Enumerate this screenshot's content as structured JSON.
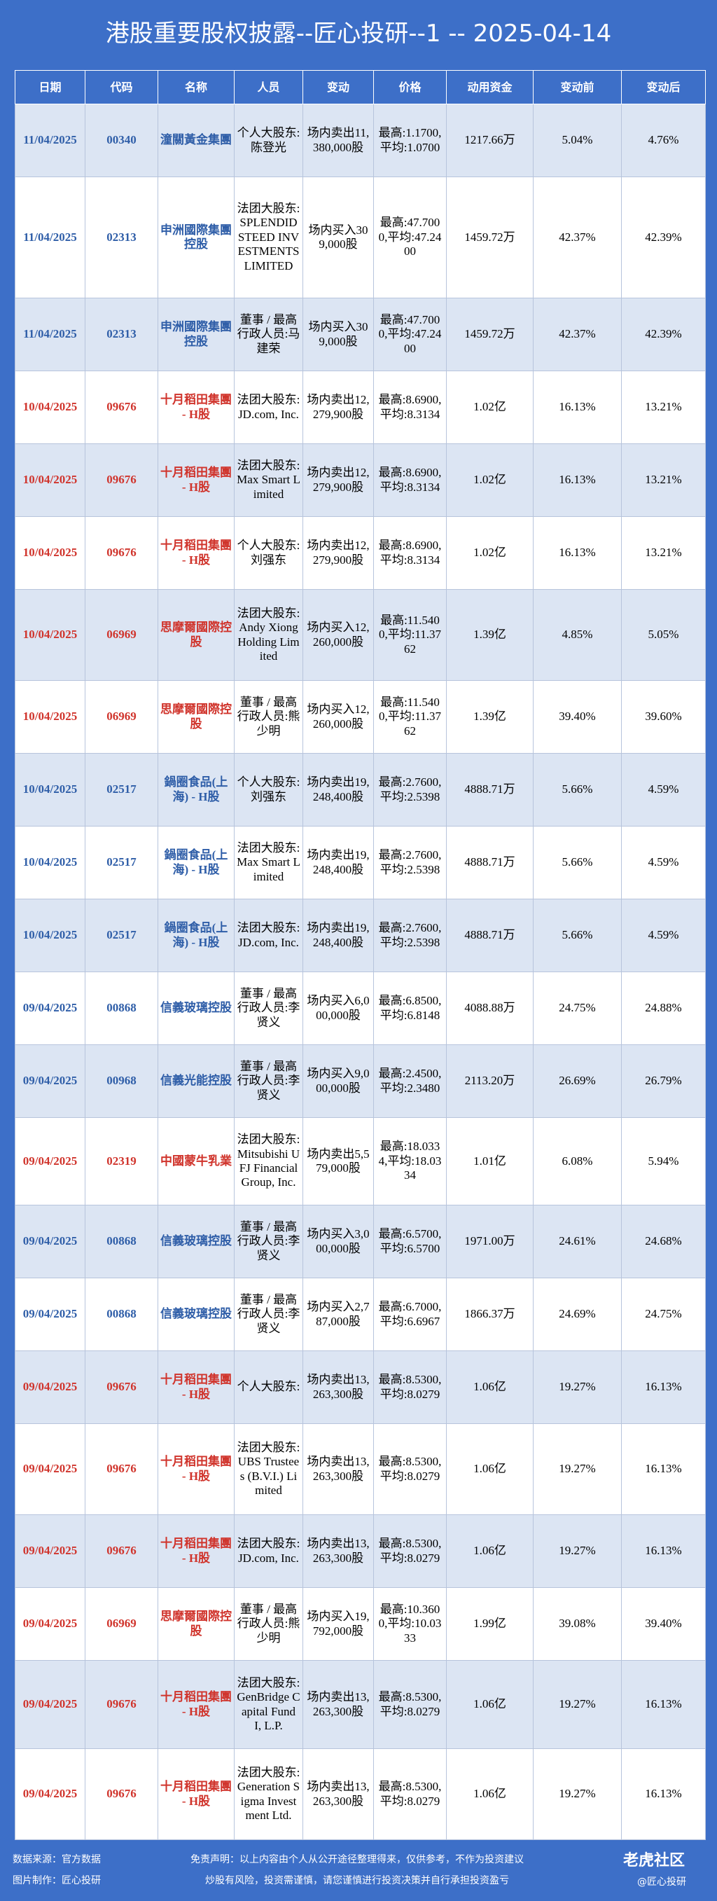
{
  "title": "港股重要股权披露--匠心投研--1 -- 2025-04-14",
  "table": {
    "header": [
      "日期",
      "代码",
      "名称",
      "人员",
      "变动",
      "价格",
      "动用资金",
      "变动前",
      "变动后"
    ],
    "rows": [
      {
        "color": "#2f5ea8",
        "cells": [
          "11/04/2025",
          "00340",
          "潼關黃金集團",
          "个人大股东:陈登光",
          "场内卖出11,380,000股",
          "最高:1.1700,平均:1.0700",
          "1217.66万",
          "5.04%",
          "4.76%"
        ]
      },
      {
        "color": "#2f5ea8",
        "cells": [
          "11/04/2025",
          "02313",
          "申洲國際集團控股",
          "法团大股东:SPLENDID STEED INVESTMENTS LIMITED",
          "场内买入309,000股",
          "最高:47.7000,平均:47.2400",
          "1459.72万",
          "42.37%",
          "42.39%"
        ]
      },
      {
        "color": "#2f5ea8",
        "cells": [
          "11/04/2025",
          "02313",
          "申洲國際集團控股",
          "董事 / 最高行政人员:马建荣",
          "场内买入309,000股",
          "最高:47.7000,平均:47.2400",
          "1459.72万",
          "42.37%",
          "42.39%"
        ]
      },
      {
        "color": "#d0342c",
        "cells": [
          "10/04/2025",
          "09676",
          "十月稻田集團 - H股",
          "法团大股东:JD.com, Inc.",
          "场内卖出12,279,900股",
          "最高:8.6900,平均:8.3134",
          "1.02亿",
          "16.13%",
          "13.21%"
        ]
      },
      {
        "color": "#d0342c",
        "cells": [
          "10/04/2025",
          "09676",
          "十月稻田集團 - H股",
          "法团大股东:Max Smart Limited",
          "场内卖出12,279,900股",
          "最高:8.6900,平均:8.3134",
          "1.02亿",
          "16.13%",
          "13.21%"
        ]
      },
      {
        "color": "#d0342c",
        "cells": [
          "10/04/2025",
          "09676",
          "十月稻田集團 - H股",
          "个人大股东:刘强东",
          "场内卖出12,279,900股",
          "最高:8.6900,平均:8.3134",
          "1.02亿",
          "16.13%",
          "13.21%"
        ]
      },
      {
        "color": "#d0342c",
        "cells": [
          "10/04/2025",
          "06969",
          "思摩爾國際控股",
          "法团大股东:Andy Xiong Holding Limited",
          "场内买入12,260,000股",
          "最高:11.5400,平均:11.3762",
          "1.39亿",
          "4.85%",
          "5.05%"
        ]
      },
      {
        "color": "#d0342c",
        "cells": [
          "10/04/2025",
          "06969",
          "思摩爾國際控股",
          "董事 / 最高行政人员:熊少明",
          "场内买入12,260,000股",
          "最高:11.5400,平均:11.3762",
          "1.39亿",
          "39.40%",
          "39.60%"
        ]
      },
      {
        "color": "#2f5ea8",
        "cells": [
          "10/04/2025",
          "02517",
          "鍋圈食品(上海) - H股",
          "个人大股东:刘强东",
          "场内卖出19,248,400股",
          "最高:2.7600,平均:2.5398",
          "4888.71万",
          "5.66%",
          "4.59%"
        ]
      },
      {
        "color": "#2f5ea8",
        "cells": [
          "10/04/2025",
          "02517",
          "鍋圈食品(上海) - H股",
          "法团大股东:Max Smart Limited",
          "场内卖出19,248,400股",
          "最高:2.7600,平均:2.5398",
          "4888.71万",
          "5.66%",
          "4.59%"
        ]
      },
      {
        "color": "#2f5ea8",
        "cells": [
          "10/04/2025",
          "02517",
          "鍋圈食品(上海) - H股",
          "法团大股东:JD.com, Inc.",
          "场内卖出19,248,400股",
          "最高:2.7600,平均:2.5398",
          "4888.71万",
          "5.66%",
          "4.59%"
        ]
      },
      {
        "color": "#2f5ea8",
        "cells": [
          "09/04/2025",
          "00868",
          "信義玻璃控股",
          "董事 / 最高行政人员:李贤义",
          "场内买入6,000,000股",
          "最高:6.8500,平均:6.8148",
          "4088.88万",
          "24.75%",
          "24.88%"
        ]
      },
      {
        "color": "#2f5ea8",
        "cells": [
          "09/04/2025",
          "00968",
          "信義光能控股",
          "董事 / 最高行政人员:李贤义",
          "场内买入9,000,000股",
          "最高:2.4500,平均:2.3480",
          "2113.20万",
          "26.69%",
          "26.79%"
        ]
      },
      {
        "color": "#d0342c",
        "cells": [
          "09/04/2025",
          "02319",
          "中國蒙牛乳業",
          "法团大股东:Mitsubishi UFJ Financial Group, Inc.",
          "场内卖出5,579,000股",
          "最高:18.0334,平均:18.0334",
          "1.01亿",
          "6.08%",
          "5.94%"
        ]
      },
      {
        "color": "#2f5ea8",
        "cells": [
          "09/04/2025",
          "00868",
          "信義玻璃控股",
          "董事 / 最高行政人员:李贤义",
          "场内买入3,000,000股",
          "最高:6.5700,平均:6.5700",
          "1971.00万",
          "24.61%",
          "24.68%"
        ]
      },
      {
        "color": "#2f5ea8",
        "cells": [
          "09/04/2025",
          "00868",
          "信義玻璃控股",
          "董事 / 最高行政人员:李贤义",
          "场内买入2,787,000股",
          "最高:6.7000,平均:6.6967",
          "1866.37万",
          "24.69%",
          "24.75%"
        ]
      },
      {
        "color": "#d0342c",
        "cells": [
          "09/04/2025",
          "09676",
          "十月稻田集團 - H股",
          "个人大股东:",
          "场内卖出13,263,300股",
          "最高:8.5300,平均:8.0279",
          "1.06亿",
          "19.27%",
          "16.13%"
        ]
      },
      {
        "color": "#d0342c",
        "cells": [
          "09/04/2025",
          "09676",
          "十月稻田集團 - H股",
          "法团大股东:UBS Trustees (B.V.I.) Limited",
          "场内卖出13,263,300股",
          "最高:8.5300,平均:8.0279",
          "1.06亿",
          "19.27%",
          "16.13%"
        ]
      },
      {
        "color": "#d0342c",
        "cells": [
          "09/04/2025",
          "09676",
          "十月稻田集團 - H股",
          "法团大股东:JD.com, Inc.",
          "场内卖出13,263,300股",
          "最高:8.5300,平均:8.0279",
          "1.06亿",
          "19.27%",
          "16.13%"
        ]
      },
      {
        "color": "#d0342c",
        "cells": [
          "09/04/2025",
          "06969",
          "思摩爾國際控股",
          "董事 / 最高行政人员:熊少明",
          "场内买入19,792,000股",
          "最高:10.3600,平均:10.0333",
          "1.99亿",
          "39.08%",
          "39.40%"
        ]
      },
      {
        "color": "#d0342c",
        "cells": [
          "09/04/2025",
          "09676",
          "十月稻田集團 - H股",
          "法团大股东:GenBridge Capital Fund I, L.P.",
          "场内卖出13,263,300股",
          "最高:8.5300,平均:8.0279",
          "1.06亿",
          "19.27%",
          "16.13%"
        ]
      },
      {
        "color": "#d0342c",
        "cells": [
          "09/04/2025",
          "09676",
          "十月稻田集團 - H股",
          "法团大股东:Generation Sigma Investment Ltd.",
          "场内卖出13,263,300股",
          "最高:8.5300,平均:8.0279",
          "1.06亿",
          "19.27%",
          "16.13%"
        ]
      }
    ]
  },
  "footer": {
    "source": "数据来源：官方数据",
    "maker": "图片制作：匠心投研",
    "disclaimer": "免责声明：以上内容由个人从公开途径整理得来，仅供参考，不作为投资建议",
    "risk": "炒股有风险，投资需谨慎，请您谨慎进行投资决策并自行承担投资盈亏",
    "brand": "老虎社区",
    "handle": "@匠心投研"
  }
}
